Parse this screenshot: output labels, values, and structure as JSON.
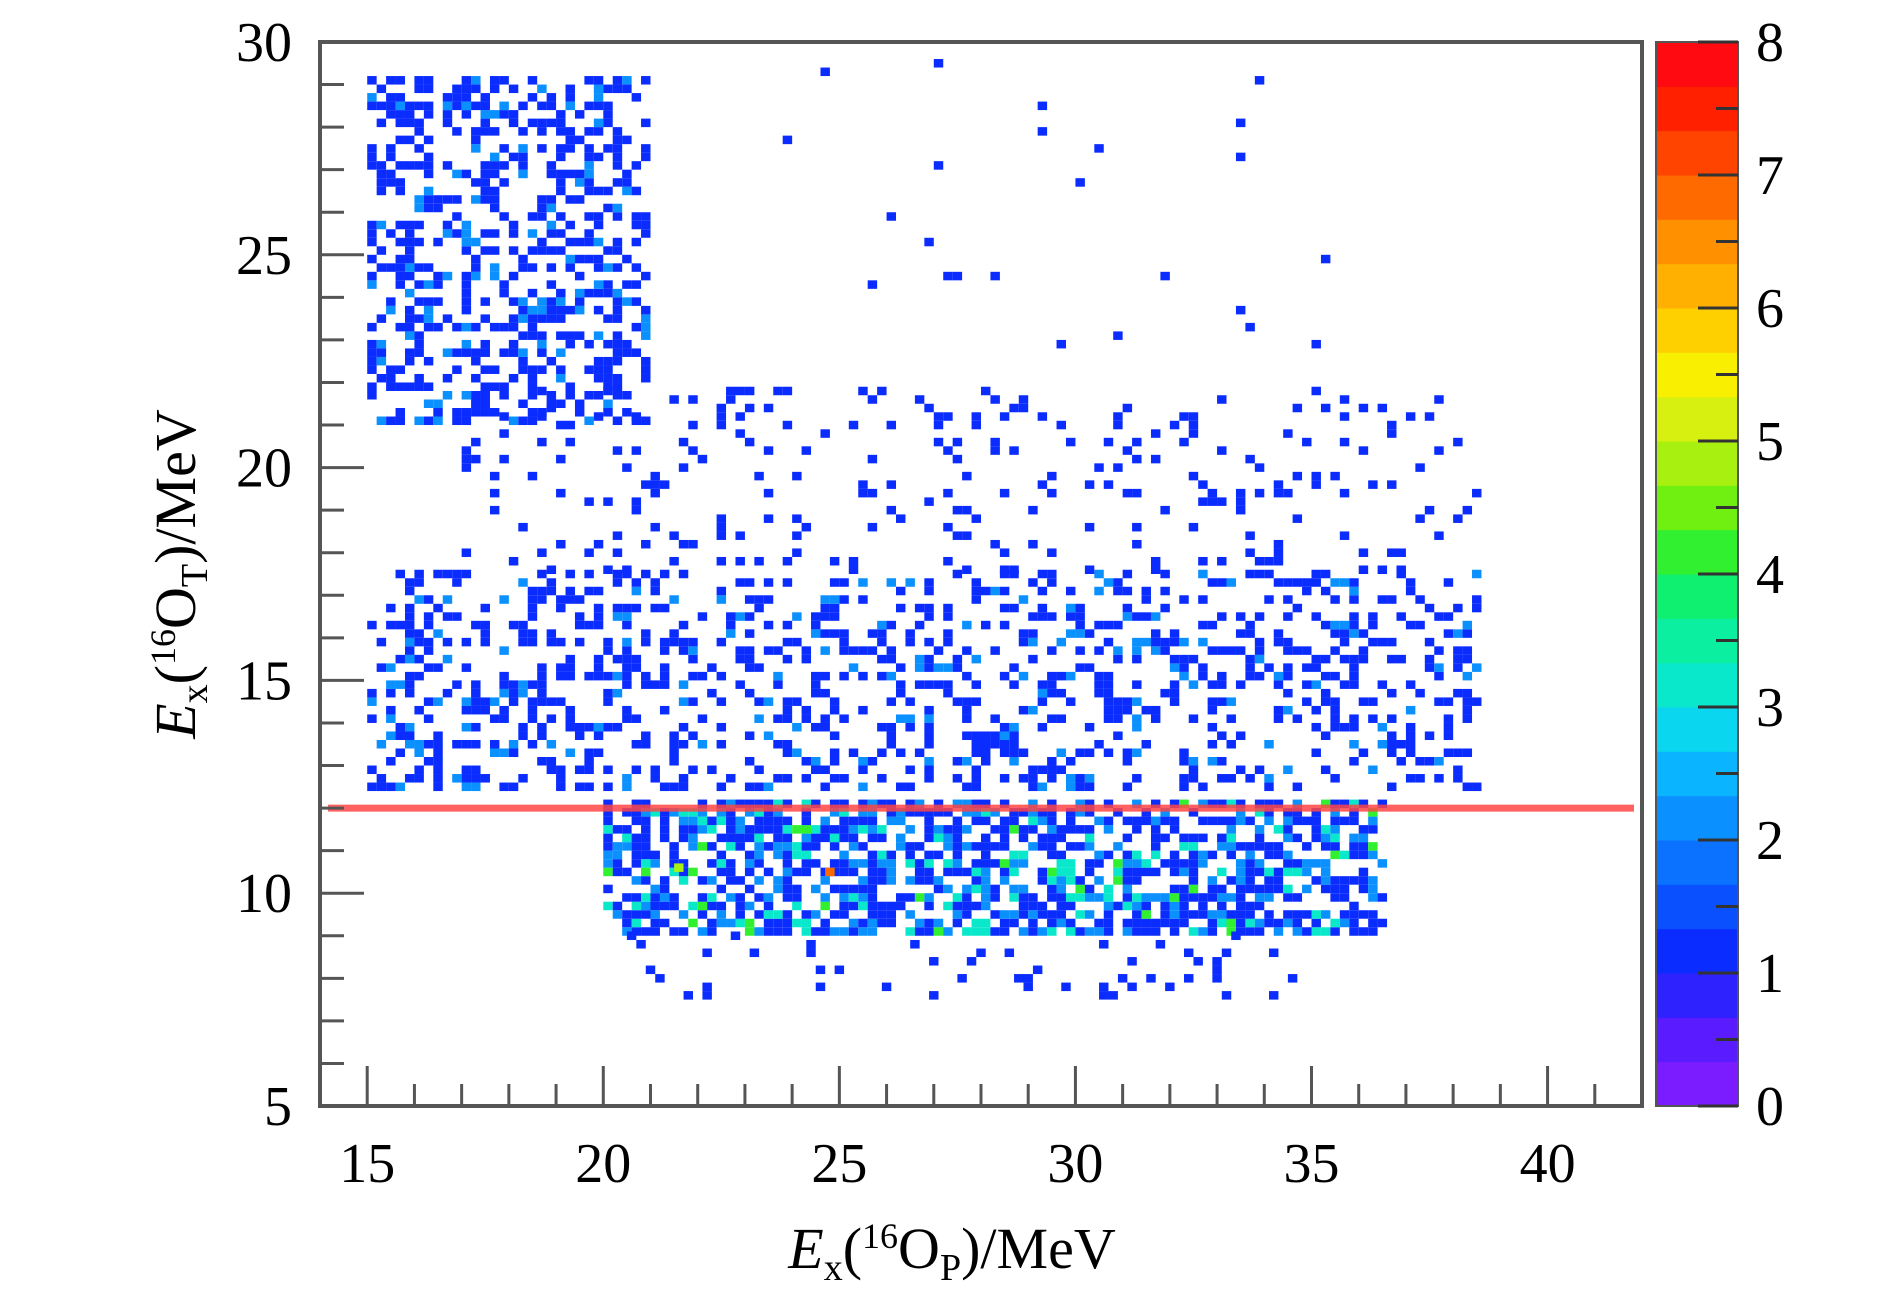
{
  "chart_data": {
    "type": "heatmap",
    "xlabel": {
      "prefix": "E",
      "sub1": "x",
      "open": "(",
      "sup": "16",
      "base": "O",
      "sub2": "P",
      "suffix": ")/MeV"
    },
    "ylabel": {
      "prefix": "E",
      "sub1": "x",
      "open": "(",
      "sup": "16",
      "base": "O",
      "sub2": "T",
      "suffix": ")/MeV"
    },
    "xlim": [
      14,
      42
    ],
    "ylim": [
      5,
      30
    ],
    "x_ticks": [
      "15",
      "20",
      "25",
      "30",
      "35",
      "40"
    ],
    "y_ticks": [
      "5",
      "10",
      "15",
      "20",
      "25",
      "30"
    ],
    "colorbar": {
      "range": [
        0,
        8
      ],
      "ticks": [
        "0",
        "1",
        "2",
        "3",
        "4",
        "5",
        "6",
        "7",
        "8"
      ],
      "colors": [
        "#7a1cff",
        "#5a1cff",
        "#2e22ff",
        "#0a2cff",
        "#0a50ff",
        "#0a72ff",
        "#0a90ff",
        "#0ab4ff",
        "#0ad6f0",
        "#0ae8cc",
        "#0af0a0",
        "#10f070",
        "#30f030",
        "#70f010",
        "#a8f010",
        "#d8f010",
        "#f8f000",
        "#ffd000",
        "#ffb000",
        "#ff9000",
        "#ff6a00",
        "#ff4400",
        "#ff2000",
        "#ff0a10"
      ]
    },
    "cut_line": {
      "y": 12,
      "color": "#ff4444"
    },
    "regions": [
      {
        "x": [
          15.0,
          20.8
        ],
        "y": [
          21.0,
          29.0
        ],
        "density": 0.42,
        "count_max": 2
      },
      {
        "x": [
          15.0,
          38.5
        ],
        "y": [
          12.4,
          17.5
        ],
        "density": 0.3,
        "count_max": 2
      },
      {
        "x": [
          17.0,
          38.5
        ],
        "y": [
          17.5,
          21.8
        ],
        "density": 0.1,
        "count_max": 1
      },
      {
        "x": [
          20.0,
          36.5
        ],
        "y": [
          9.0,
          12.0
        ],
        "density": 0.62,
        "count_max": 4
      },
      {
        "x": [
          20.5,
          34.5
        ],
        "y": [
          7.5,
          9.0
        ],
        "density": 0.08,
        "count_max": 1
      },
      {
        "x": [
          22.0,
          35.5
        ],
        "y": [
          21.8,
          29.5
        ],
        "density": 0.01,
        "count_max": 1
      }
    ],
    "peak_bins": [
      {
        "x": 24.7,
        "y": 10.4,
        "count": 7
      },
      {
        "x": 21.5,
        "y": 10.5,
        "count": 5
      }
    ],
    "grid": false,
    "legend": "none"
  }
}
